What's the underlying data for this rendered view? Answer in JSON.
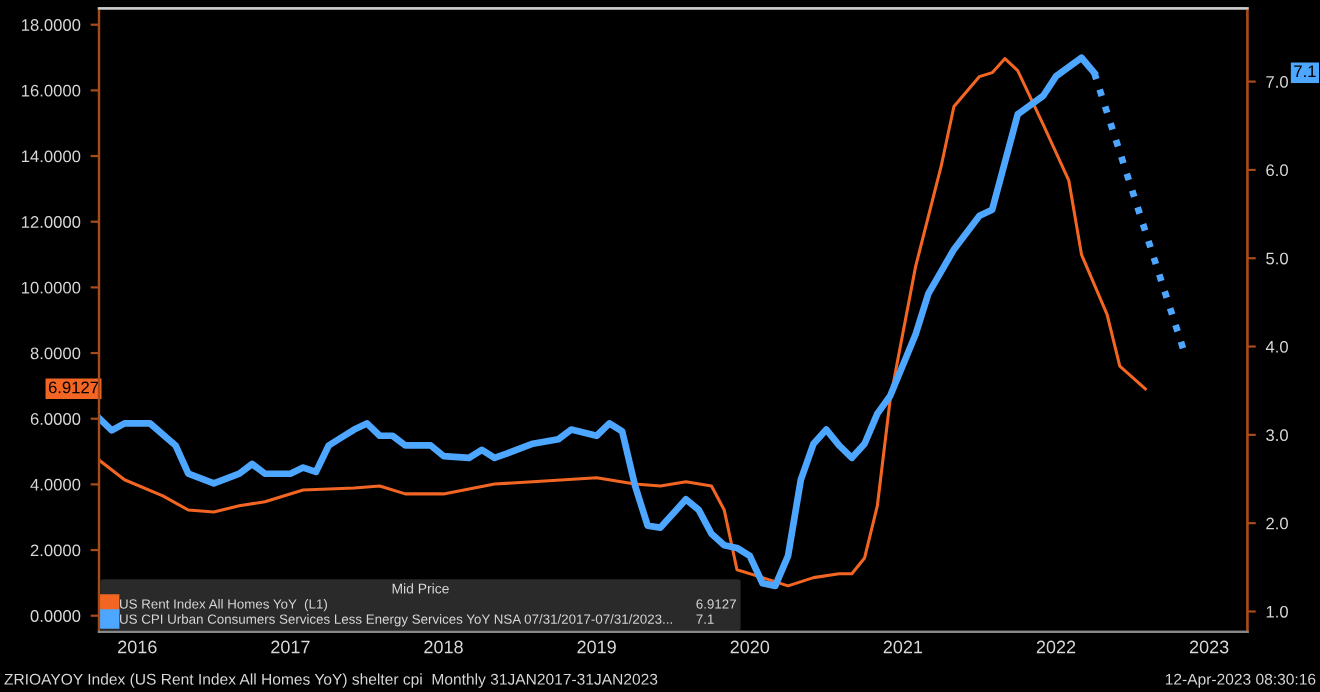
{
  "chart_data": {
    "type": "line",
    "legend_title": "Mid Price",
    "legend": "bottom left",
    "grid": false,
    "xlim": [
      "2016-04",
      "2023-10"
    ],
    "xticks": [
      {
        "value": "2016-07",
        "label": "2016"
      },
      {
        "value": "2017-07",
        "label": "2017"
      },
      {
        "value": "2018-07",
        "label": "2018"
      },
      {
        "value": "2019-07",
        "label": "2019"
      },
      {
        "value": "2020-07",
        "label": "2020"
      },
      {
        "value": "2021-07",
        "label": "2021"
      },
      {
        "value": "2022-07",
        "label": "2022"
      },
      {
        "value": "2023-07",
        "label": "2023"
      }
    ],
    "ylim": [
      -0.49,
      18.5
    ],
    "yticks": [
      {
        "value": 0,
        "label": "0.0000"
      },
      {
        "value": 2,
        "label": "2.0000"
      },
      {
        "value": 4,
        "label": "4.0000"
      },
      {
        "value": 6,
        "label": "6.0000"
      },
      {
        "value": 8,
        "label": "8.0000"
      },
      {
        "value": 10,
        "label": "10.0000"
      },
      {
        "value": 12,
        "label": "12.0000"
      },
      {
        "value": 14,
        "label": "14.0000"
      },
      {
        "value": 16,
        "label": "16.0000"
      },
      {
        "value": 18,
        "label": "18.0000"
      }
    ],
    "y2lim": [
      0.77,
      7.83
    ],
    "y2ticks": [
      {
        "value": 1,
        "label": "1.0"
      },
      {
        "value": 2,
        "label": "2.0"
      },
      {
        "value": 3,
        "label": "3.0"
      },
      {
        "value": 4,
        "label": "4.0"
      },
      {
        "value": 5,
        "label": "5.0"
      },
      {
        "value": 6,
        "label": "6.0"
      },
      {
        "value": 7,
        "label": "7.0"
      }
    ],
    "series": [
      {
        "name": "US Rent Index All Homes YoY  (L1)",
        "color": "#f26522",
        "line_style": "solid",
        "x": [
          "2016-04",
          "2016-06",
          "2016-09",
          "2016-11",
          "2017-01",
          "2017-03",
          "2017-05",
          "2017-08",
          "2017-12",
          "2018-02",
          "2018-04",
          "2018-07",
          "2018-11",
          "2019-02",
          "2019-07",
          "2019-10",
          "2019-12",
          "2020-02",
          "2020-04",
          "2020-05",
          "2020-06",
          "2020-08",
          "2020-10",
          "2020-12",
          "2021-02",
          "2021-03",
          "2021-04",
          "2021-05",
          "2021-06",
          "2021-08",
          "2021-10",
          "2021-11",
          "2022-01",
          "2022-02",
          "2022-03",
          "2022-04",
          "2022-06",
          "2022-08",
          "2022-09",
          "2022-11",
          "2022-12",
          "2023-02"
        ],
        "values": [
          4.74,
          4.14,
          3.65,
          3.22,
          3.16,
          3.35,
          3.47,
          3.83,
          3.89,
          3.95,
          3.71,
          3.71,
          4.01,
          4.08,
          4.2,
          4.01,
          3.95,
          4.08,
          3.95,
          3.22,
          1.4,
          1.16,
          0.91,
          1.16,
          1.28,
          1.28,
          1.76,
          3.35,
          6.57,
          10.64,
          13.69,
          15.51,
          16.42,
          16.54,
          16.97,
          16.6,
          14.96,
          13.26,
          11.0,
          9.18,
          7.6,
          6.91
        ]
      },
      {
        "name": "US CPI Urban Consumers Services Less Energy Services YoY NSA 07/31/2017-07/31/2023...",
        "color": "#4da6ff",
        "axis": "y2",
        "line_style": "solid",
        "x": [
          "2016-04",
          "2016-05",
          "2016-06",
          "2016-08",
          "2016-10",
          "2016-11",
          "2017-01",
          "2017-03",
          "2017-04",
          "2017-05",
          "2017-07",
          "2017-08",
          "2017-09",
          "2017-10",
          "2017-11",
          "2017-12",
          "2018-01",
          "2018-02",
          "2018-03",
          "2018-04",
          "2018-06",
          "2018-07",
          "2018-09",
          "2018-10",
          "2018-11",
          "2018-12",
          "2019-02",
          "2019-04",
          "2019-05",
          "2019-07",
          "2019-08",
          "2019-09",
          "2019-10",
          "2019-11",
          "2019-12",
          "2020-02",
          "2020-03",
          "2020-04",
          "2020-05",
          "2020-06",
          "2020-07",
          "2020-08",
          "2020-09",
          "2020-10",
          "2020-11",
          "2020-12",
          "2021-01",
          "2021-02",
          "2021-03",
          "2021-04",
          "2021-05",
          "2021-06",
          "2021-08",
          "2021-09",
          "2021-11",
          "2022-01",
          "2022-02",
          "2022-04",
          "2022-06",
          "2022-07",
          "2022-09",
          "2022-10"
        ],
        "values": [
          3.19,
          3.05,
          3.13,
          3.13,
          2.88,
          2.56,
          2.45,
          2.56,
          2.67,
          2.56,
          2.56,
          2.63,
          2.58,
          2.88,
          2.97,
          3.06,
          3.13,
          2.99,
          2.99,
          2.88,
          2.88,
          2.76,
          2.74,
          2.83,
          2.74,
          2.79,
          2.9,
          2.95,
          3.06,
          2.99,
          3.13,
          3.04,
          2.43,
          1.97,
          1.95,
          2.27,
          2.15,
          1.88,
          1.75,
          1.72,
          1.63,
          1.32,
          1.29,
          1.63,
          2.49,
          2.9,
          3.06,
          2.88,
          2.74,
          2.9,
          3.24,
          3.44,
          4.14,
          4.6,
          5.1,
          5.48,
          5.55,
          6.63,
          6.84,
          7.06,
          7.27,
          7.1
        ]
      },
      {
        "color": "#4da6ff",
        "axis": "y2",
        "line_style": "dotted",
        "x": [
          "2022-10",
          "2023-05"
        ],
        "values": [
          7.1,
          3.96
        ]
      }
    ],
    "annotations": [
      "6.9127",
      "7.1",
      "ZRIOAYOY Index (US Rent Index All Homes YoY) shelter cpi  Monthly 31JAN2017-31JAN2023",
      "12-Apr-2023 08:30:16"
    ]
  }
}
